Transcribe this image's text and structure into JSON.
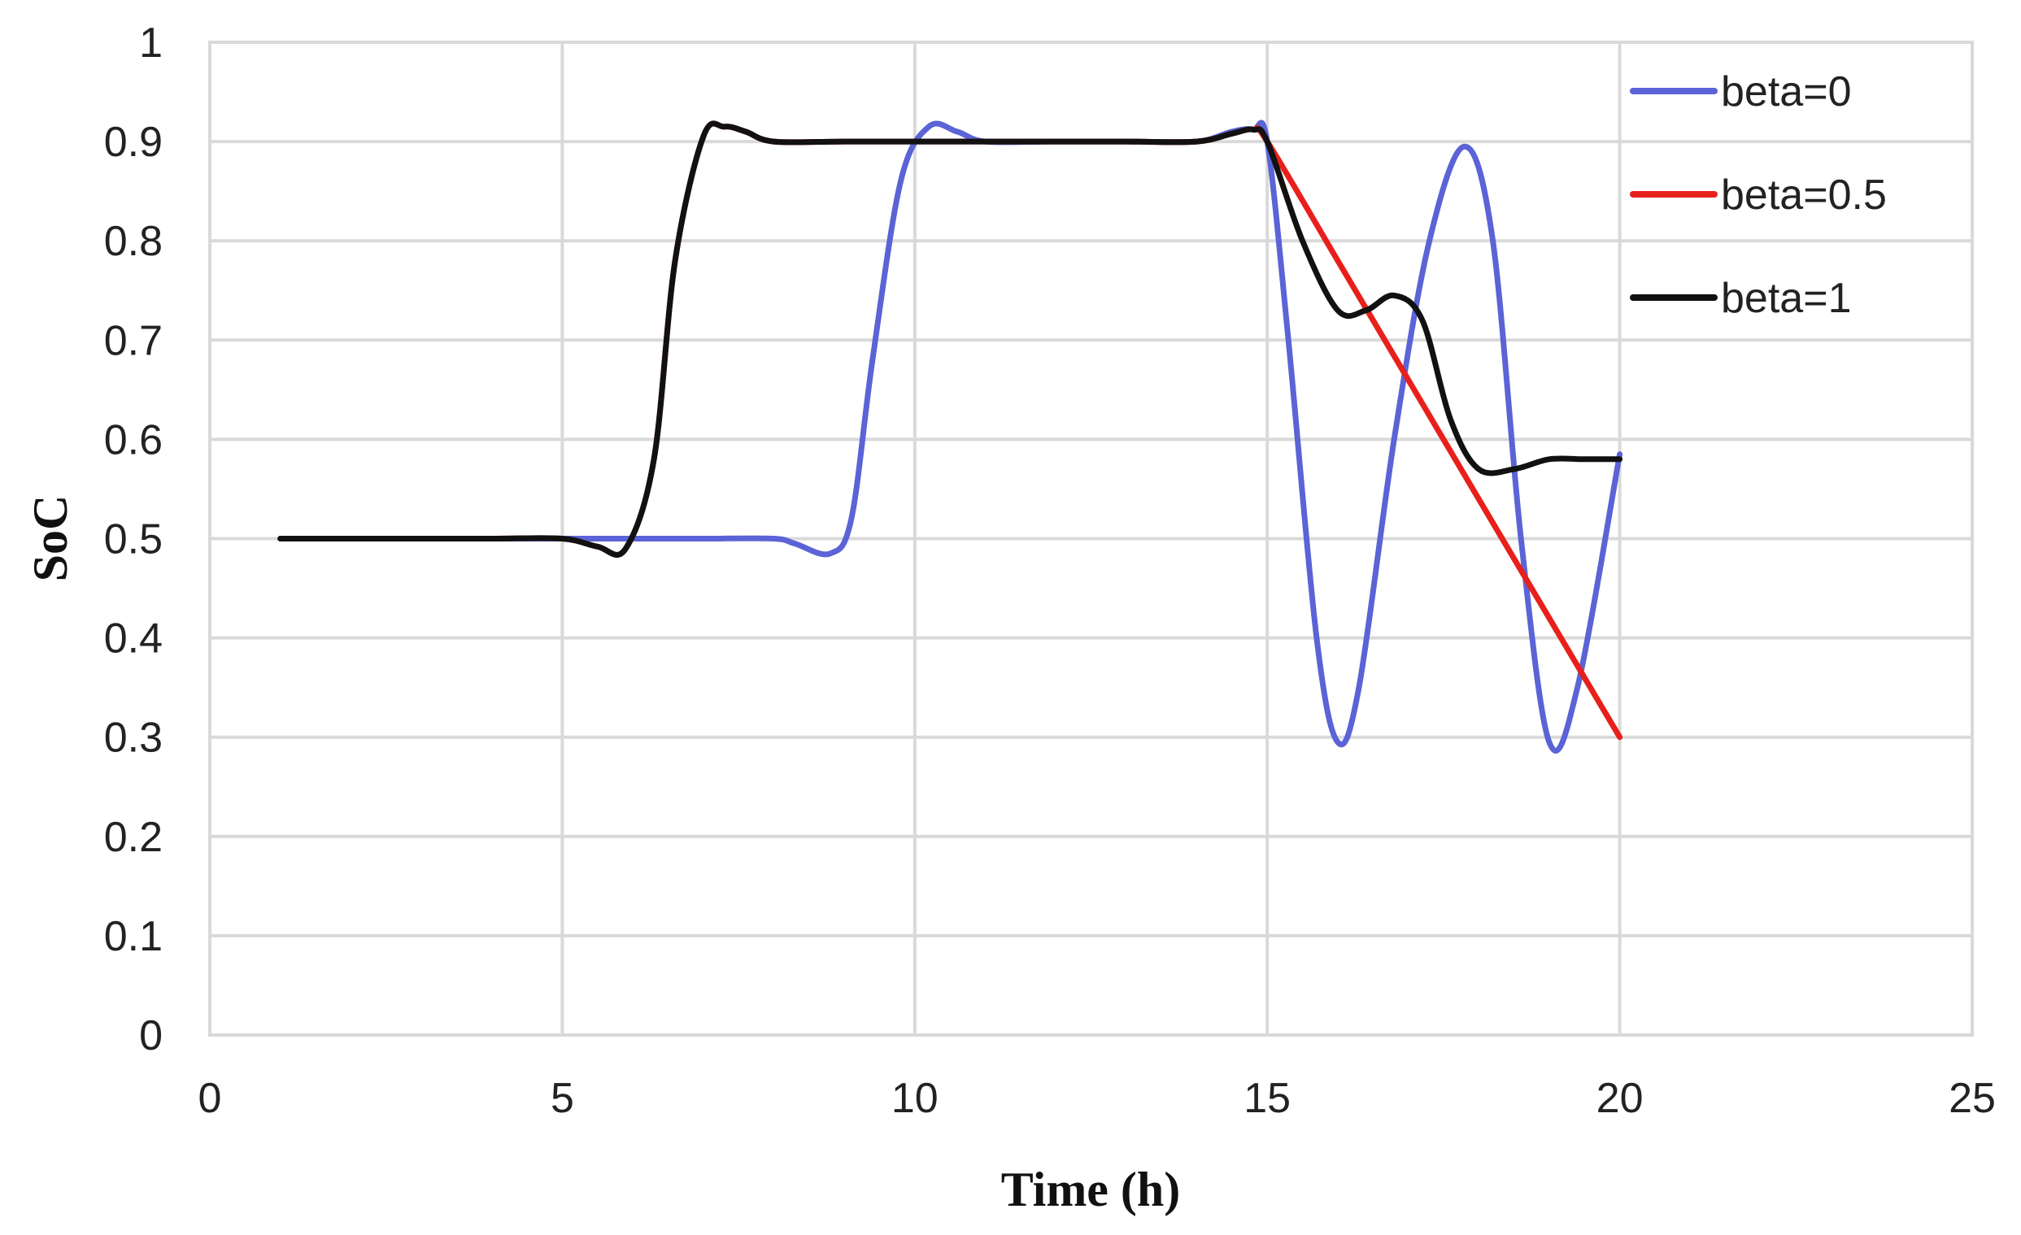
{
  "chart_data": {
    "type": "line",
    "title": "",
    "xlabel": "Time (h)",
    "ylabel": "SoC",
    "xlim": [
      0,
      25
    ],
    "ylim": [
      0,
      1
    ],
    "x_ticks": [
      "0",
      "5",
      "10",
      "15",
      "20",
      "25"
    ],
    "y_ticks": [
      "0",
      "0.1",
      "0.2",
      "0.3",
      "0.4",
      "0.5",
      "0.6",
      "0.7",
      "0.8",
      "0.9",
      "1"
    ],
    "grid": true,
    "legend_position": "top-right",
    "series": [
      {
        "name": "beta=0",
        "color": "#5b63d6",
        "points": [
          [
            1,
            0.5
          ],
          [
            2,
            0.5
          ],
          [
            3,
            0.5
          ],
          [
            4,
            0.5
          ],
          [
            5,
            0.5
          ],
          [
            5.5,
            0.5
          ],
          [
            6,
            0.5
          ],
          [
            7,
            0.5
          ],
          [
            8,
            0.5
          ],
          [
            8.3,
            0.495
          ],
          [
            8.8,
            0.485
          ],
          [
            9.1,
            0.52
          ],
          [
            9.4,
            0.68
          ],
          [
            9.8,
            0.86
          ],
          [
            10.2,
            0.915
          ],
          [
            10.6,
            0.91
          ],
          [
            11,
            0.9
          ],
          [
            12,
            0.9
          ],
          [
            13,
            0.9
          ],
          [
            14,
            0.9
          ],
          [
            14.5,
            0.91
          ],
          [
            14.8,
            0.912
          ],
          [
            15,
            0.9
          ],
          [
            15.3,
            0.7
          ],
          [
            15.7,
            0.4
          ],
          [
            16,
            0.295
          ],
          [
            16.3,
            0.35
          ],
          [
            16.8,
            0.6
          ],
          [
            17.3,
            0.8
          ],
          [
            17.8,
            0.895
          ],
          [
            18.2,
            0.8
          ],
          [
            18.6,
            0.5
          ],
          [
            19,
            0.295
          ],
          [
            19.4,
            0.35
          ],
          [
            20,
            0.585
          ]
        ]
      },
      {
        "name": "beta=0.5",
        "color": "#e8201c",
        "points": [
          [
            1,
            0.5
          ],
          [
            2,
            0.5
          ],
          [
            3,
            0.5
          ],
          [
            4,
            0.5
          ],
          [
            5,
            0.5
          ],
          [
            5.5,
            0.492
          ],
          [
            5.9,
            0.49
          ],
          [
            6.3,
            0.58
          ],
          [
            6.6,
            0.78
          ],
          [
            7,
            0.905
          ],
          [
            7.3,
            0.915
          ],
          [
            7.6,
            0.91
          ],
          [
            8,
            0.9
          ],
          [
            9,
            0.9
          ],
          [
            10,
            0.9
          ],
          [
            11,
            0.9
          ],
          [
            12,
            0.9
          ],
          [
            13,
            0.9
          ],
          [
            14,
            0.9
          ],
          [
            14.5,
            0.908
          ],
          [
            14.8,
            0.912
          ],
          [
            15,
            0.9
          ],
          [
            16,
            0.78
          ],
          [
            17,
            0.66
          ],
          [
            18,
            0.54
          ],
          [
            19,
            0.42
          ],
          [
            20,
            0.3
          ]
        ]
      },
      {
        "name": "beta=1",
        "color": "#111111",
        "points": [
          [
            1,
            0.5
          ],
          [
            2,
            0.5
          ],
          [
            3,
            0.5
          ],
          [
            4,
            0.5
          ],
          [
            5,
            0.5
          ],
          [
            5.5,
            0.492
          ],
          [
            5.9,
            0.49
          ],
          [
            6.3,
            0.58
          ],
          [
            6.6,
            0.78
          ],
          [
            7,
            0.905
          ],
          [
            7.3,
            0.915
          ],
          [
            7.6,
            0.91
          ],
          [
            8,
            0.9
          ],
          [
            9,
            0.9
          ],
          [
            10,
            0.9
          ],
          [
            11,
            0.9
          ],
          [
            12,
            0.9
          ],
          [
            13,
            0.9
          ],
          [
            14,
            0.9
          ],
          [
            14.5,
            0.908
          ],
          [
            14.8,
            0.912
          ],
          [
            15,
            0.9
          ],
          [
            15.5,
            0.8
          ],
          [
            16,
            0.73
          ],
          [
            16.4,
            0.73
          ],
          [
            16.8,
            0.745
          ],
          [
            17.2,
            0.72
          ],
          [
            17.6,
            0.62
          ],
          [
            18,
            0.57
          ],
          [
            18.5,
            0.57
          ],
          [
            19,
            0.58
          ],
          [
            19.5,
            0.58
          ],
          [
            20,
            0.58
          ]
        ]
      }
    ]
  }
}
